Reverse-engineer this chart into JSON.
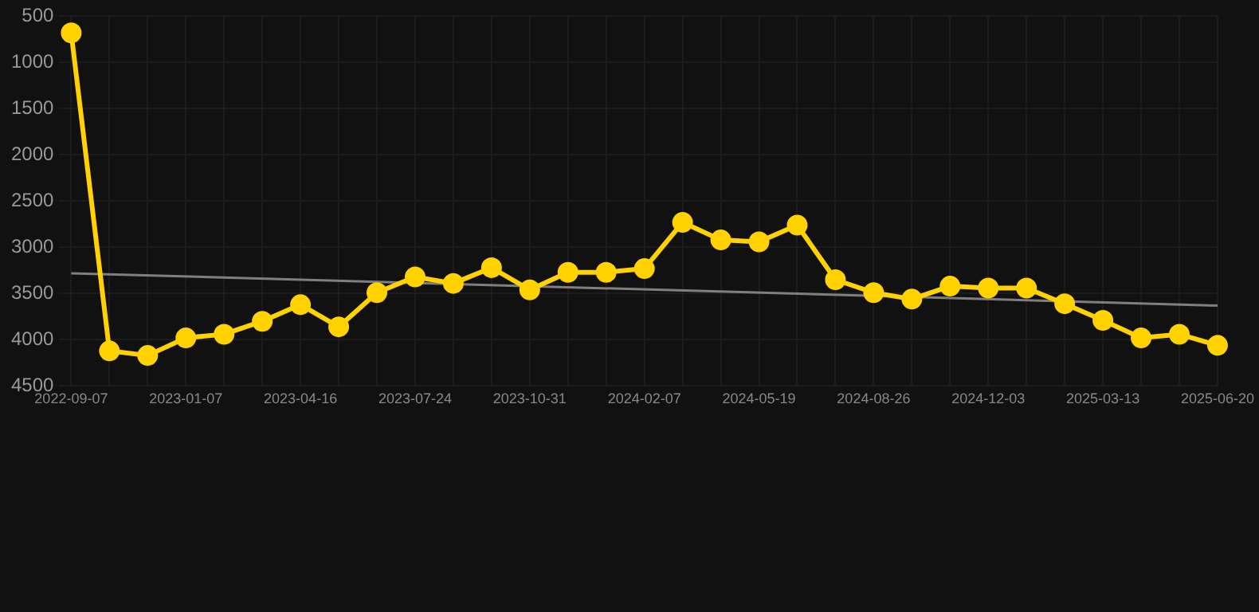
{
  "chart_data": {
    "type": "line",
    "categories": [
      "2022-09-07",
      null,
      null,
      "2023-01-07",
      null,
      null,
      "2023-04-16",
      null,
      null,
      "2023-07-24",
      null,
      null,
      "2023-10-31",
      null,
      null,
      "2024-02-07",
      null,
      null,
      "2024-05-19",
      null,
      null,
      "2024-08-26",
      null,
      null,
      "2024-12-03",
      null,
      null,
      "2025-03-13",
      null,
      null,
      "2025-06-20"
    ],
    "series": [
      {
        "color": "#ffd200",
        "values": [
          680,
          4120,
          4170,
          3980,
          3940,
          3800,
          3620,
          3860,
          3490,
          3320,
          3390,
          3220,
          3460,
          3270,
          3270,
          3230,
          2730,
          2920,
          2940,
          2760,
          3350,
          3490,
          3560,
          3420,
          3440,
          3440,
          3610,
          3790,
          3980,
          3940,
          4060
        ]
      },
      {
        "type": "line",
        "color": "#7f7f7f",
        "marker": "none",
        "values": [
          3280,
          null,
          null,
          null,
          null,
          null,
          null,
          null,
          null,
          null,
          null,
          null,
          null,
          null,
          null,
          null,
          null,
          null,
          null,
          null,
          null,
          null,
          null,
          null,
          null,
          null,
          null,
          null,
          null,
          null,
          3630
        ]
      }
    ],
    "ylim": [
      4500,
      500
    ],
    "yticks": [
      500,
      1000,
      1500,
      2000,
      2500,
      3000,
      3500,
      4000,
      4500
    ],
    "grid": true,
    "legend": false,
    "marker": "circle",
    "line_style": "solid"
  }
}
